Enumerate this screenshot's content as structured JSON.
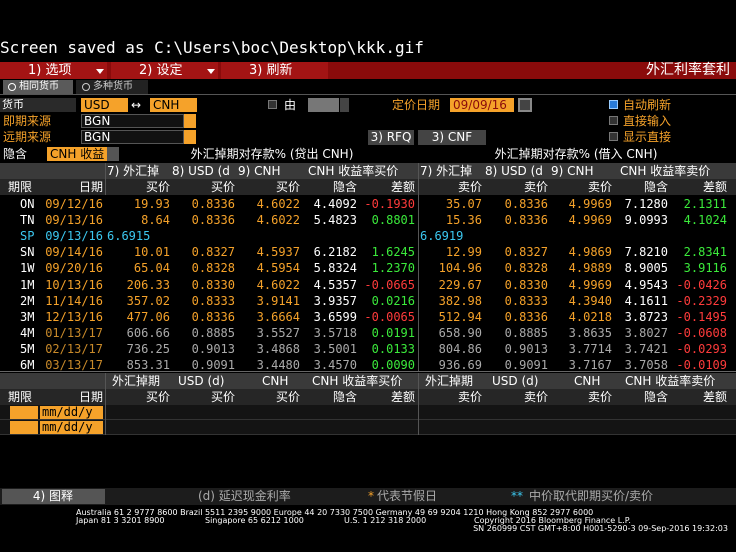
{
  "status": "Screen saved as C:\\Users\\boc\\Desktop\\kkk.gif",
  "menu": {
    "items": [
      "1) 选项",
      "2) 设定",
      "3) 刷新"
    ],
    "title": "外汇利率套利"
  },
  "tabs": [
    "相同货币",
    "多种货币"
  ],
  "form": {
    "currency_label": "货币",
    "base": "USD",
    "arrow": "↔",
    "quote": "CNH",
    "by_label": "由",
    "pricing_date_label": "定价日期",
    "pricing_date": "09/09/16",
    "auto_refresh": "自动刷新",
    "spot_source_label": "即期来源",
    "spot_source": "BGN",
    "direct_input": "直接输入",
    "fwd_source_label": "远期来源",
    "fwd_source": "BGN",
    "rfq": "3) RFQ",
    "cnf": "3) CNF",
    "show_direct": "显示直接",
    "implied_label": "隐含",
    "implied": "CNH 收益"
  },
  "sections": [
    "外汇掉期对存款% (贷出 CNH)",
    "外汇掉期对存款% (借入 CNH)"
  ],
  "table": {
    "header1": [
      "7) 外汇掉",
      "8) USD (d",
      "9) CNH",
      "CNH 收益率买价",
      "7) 外汇掉",
      "8) USD (d",
      "9) CNH",
      "CNH 收益率卖价"
    ],
    "header2": [
      "期限",
      "日期",
      "买价",
      "买价",
      "买价",
      "隐含",
      "差额",
      "卖价",
      "卖价",
      "卖价",
      "隐含",
      "差额"
    ],
    "rows": [
      {
        "tenor": "ON",
        "date": "09/12/16",
        "bid": [
          "19.93",
          "0.8336",
          "4.6022",
          "4.4092",
          "-0.1930"
        ],
        "ask": [
          "35.07",
          "0.8336",
          "4.9969",
          "7.1280",
          "2.1311"
        ],
        "color": "#f5a22a"
      },
      {
        "tenor": "TN",
        "date": "09/13/16",
        "bid": [
          "8.64",
          "0.8336",
          "4.6022",
          "5.4823",
          "0.8801"
        ],
        "ask": [
          "15.36",
          "0.8336",
          "4.9969",
          "9.0993",
          "4.1024"
        ],
        "color": "#f5a22a"
      },
      {
        "tenor": "SP",
        "date": "09/13/16",
        "bid_spot": "6.6915",
        "ask_spot": "6.6919",
        "color": "#3cc8f0"
      },
      {
        "tenor": "SN",
        "date": "09/14/16",
        "bid": [
          "10.01",
          "0.8327",
          "4.5937",
          "6.2182",
          "1.6245"
        ],
        "ask": [
          "12.99",
          "0.8327",
          "4.9869",
          "7.8210",
          "2.8341"
        ],
        "color": "#f5a22a"
      },
      {
        "tenor": "1W",
        "date": "09/20/16",
        "bid": [
          "65.04",
          "0.8328",
          "4.5954",
          "5.8324",
          "1.2370"
        ],
        "ask": [
          "104.96",
          "0.8328",
          "4.9889",
          "8.9005",
          "3.9116"
        ],
        "color": "#f5a22a"
      },
      {
        "tenor": "1M",
        "date": "10/13/16",
        "bid": [
          "206.33",
          "0.8330",
          "4.6022",
          "4.5357",
          "-0.0665"
        ],
        "ask": [
          "229.67",
          "0.8330",
          "4.9969",
          "4.9543",
          "-0.0426"
        ],
        "color": "#f5a22a"
      },
      {
        "tenor": "2M",
        "date": "11/14/16",
        "bid": [
          "357.02",
          "0.8333",
          "3.9141",
          "3.9357",
          "0.0216"
        ],
        "ask": [
          "382.98",
          "0.8333",
          "4.3940",
          "4.1611",
          "-0.2329"
        ],
        "color": "#f5a22a"
      },
      {
        "tenor": "3M",
        "date": "12/13/16",
        "bid": [
          "477.06",
          "0.8336",
          "3.6664",
          "3.6599",
          "-0.0065"
        ],
        "ask": [
          "512.94",
          "0.8336",
          "4.0218",
          "3.8723",
          "-0.1495"
        ],
        "color": "#f5a22a"
      },
      {
        "tenor": "4M",
        "date": "01/13/17",
        "bid": [
          "606.66",
          "0.8885",
          "3.5527",
          "3.5718",
          "0.0191"
        ],
        "ask": [
          "658.90",
          "0.8885",
          "3.8635",
          "3.8027",
          "-0.0608"
        ],
        "color": "#aaaaaa"
      },
      {
        "tenor": "5M",
        "date": "02/13/17",
        "bid": [
          "736.25",
          "0.9013",
          "3.4868",
          "3.5001",
          "0.0133"
        ],
        "ask": [
          "804.86",
          "0.9013",
          "3.7714",
          "3.7421",
          "-0.0293"
        ],
        "color": "#aaaaaa"
      },
      {
        "tenor": "6M",
        "date": "03/13/17",
        "bid": [
          "853.31",
          "0.9091",
          "3.4480",
          "3.4570",
          "0.0090"
        ],
        "ask": [
          "936.69",
          "0.9091",
          "3.7167",
          "3.7058",
          "-0.0109"
        ],
        "color": "#aaaaaa"
      }
    ]
  },
  "lower": {
    "header1": [
      "外汇掉期",
      "USD (d)",
      "CNH",
      "CNH 收益率买价",
      "外汇掉期",
      "USD (d)",
      "CNH",
      "CNH 收益率卖价"
    ],
    "header2": [
      "期限",
      "日期",
      "买价",
      "买价",
      "买价",
      "隐含",
      "差额",
      "卖价",
      "卖价",
      "卖价",
      "隐含",
      "差额"
    ],
    "inputs": [
      "mm/dd/y",
      "mm/dd/y"
    ]
  },
  "bottom": {
    "legend_button": "4) 图释",
    "delayed": "(d) 延迟现金利率",
    "holiday": {
      "mark": "*",
      "text": "代表节假日"
    },
    "mid": {
      "mark": "**",
      "text": "中价取代即期买价/卖价"
    }
  },
  "footer": {
    "line1": "Australia 61 2 9777 8600 Brazil 5511 2395 9000 Europe 44 20 7330 7500 Germany 49 69 9204 1210 Hong Kong 852 2977 6000",
    "line2": [
      "Japan 81 3 3201 8900",
      "Singapore 65 6212 1000",
      "U.S. 1 212 318 2000",
      "Copyright 2016 Bloomberg Finance L.P."
    ],
    "line3": "SN 260999 CST  GMT+8:00 H001-5290-3 09-Sep-2016 19:32:03"
  }
}
